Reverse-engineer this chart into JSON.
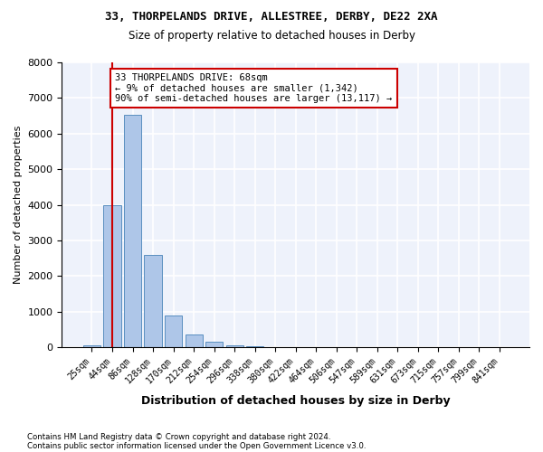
{
  "title1": "33, THORPELANDS DRIVE, ALLESTREE, DERBY, DE22 2XA",
  "title2": "Size of property relative to detached houses in Derby",
  "xlabel": "Distribution of detached houses by size in Derby",
  "ylabel": "Number of detached properties",
  "footnote1": "Contains HM Land Registry data © Crown copyright and database right 2024.",
  "footnote2": "Contains public sector information licensed under the Open Government Licence v3.0.",
  "bin_labels": [
    "25sqm",
    "44sqm",
    "86sqm",
    "128sqm",
    "170sqm",
    "212sqm",
    "254sqm",
    "296sqm",
    "338sqm",
    "380sqm",
    "422sqm",
    "464sqm",
    "506sqm",
    "547sqm",
    "589sqm",
    "631sqm",
    "673sqm",
    "715sqm",
    "757sqm",
    "799sqm",
    "841sqm"
  ],
  "bar_values": [
    50,
    3980,
    6520,
    2600,
    900,
    350,
    150,
    60,
    20,
    5,
    2,
    1,
    0,
    0,
    0,
    0,
    0,
    0,
    0,
    0,
    0
  ],
  "bar_color": "#aec6e8",
  "bar_edge_color": "#5a8fc0",
  "background_color": "#eef2fb",
  "grid_color": "#ffffff",
  "ylim": [
    0,
    8000
  ],
  "yticks": [
    0,
    1000,
    2000,
    3000,
    4000,
    5000,
    6000,
    7000,
    8000
  ],
  "property_line_x": 1.0,
  "property_line_color": "#cc0000",
  "annotation_text": "33 THORPELANDS DRIVE: 68sqm\n← 9% of detached houses are smaller (1,342)\n90% of semi-detached houses are larger (13,117) →",
  "annotation_box_color": "#ffffff",
  "annotation_box_edge_color": "#cc0000"
}
